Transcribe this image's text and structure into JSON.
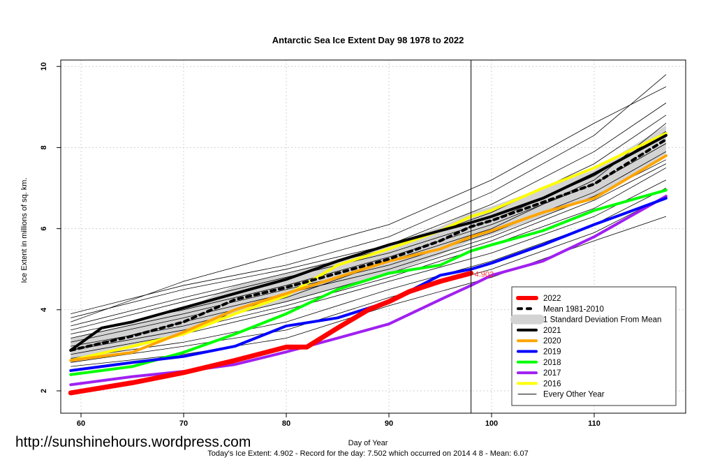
{
  "chart_data": {
    "type": "line",
    "title": "Antarctic Sea Ice Extent Day 98 1978 to 2022",
    "xlabel": "Day of Year",
    "ylabel": "Ice Extent in millions of sq. km.",
    "xlim": [
      59,
      117
    ],
    "ylim": [
      2,
      10
    ],
    "xticks": [
      60,
      70,
      80,
      90,
      100,
      110
    ],
    "yticks": [
      2,
      4,
      6,
      8,
      10
    ],
    "grid": true,
    "marker_day": 98,
    "annotation": "4.902",
    "legend_position": "bottom-right",
    "sd_band": {
      "label": "1 Standard Deviation From Mean",
      "color": "#d3d3d3",
      "x": [
        59,
        65,
        70,
        75,
        80,
        85,
        90,
        95,
        98,
        100,
        105,
        110,
        117
      ],
      "lower": [
        2.7,
        3.05,
        3.4,
        3.9,
        4.2,
        4.55,
        4.9,
        5.35,
        5.7,
        5.85,
        6.3,
        6.75,
        7.85
      ],
      "upper": [
        3.3,
        3.65,
        4.0,
        4.6,
        4.9,
        5.25,
        5.6,
        6.05,
        6.4,
        6.55,
        7.0,
        7.45,
        8.55
      ]
    },
    "series": [
      {
        "name": "Every Other Year",
        "color": "#000000",
        "width": 1,
        "other": true,
        "x": [
          59,
          70,
          80,
          90,
          100,
          110,
          117
        ],
        "lines": [
          [
            3.9,
            4.6,
            5.1,
            5.8,
            6.9,
            8.3,
            9.8
          ],
          [
            3.8,
            4.5,
            5.0,
            5.6,
            6.6,
            7.9,
            9.1
          ],
          [
            3.6,
            4.3,
            4.9,
            5.5,
            6.4,
            7.6,
            8.8
          ],
          [
            3.5,
            4.2,
            4.8,
            5.4,
            6.2,
            7.3,
            8.4
          ],
          [
            3.4,
            4.0,
            4.6,
            5.3,
            6.1,
            7.1,
            8.1
          ],
          [
            3.3,
            3.9,
            4.5,
            5.1,
            5.9,
            6.9,
            7.9
          ],
          [
            3.2,
            3.8,
            4.4,
            5.0,
            5.8,
            6.8,
            7.7
          ],
          [
            3.1,
            3.6,
            4.2,
            4.9,
            5.7,
            6.7,
            7.6
          ],
          [
            3.0,
            3.5,
            4.1,
            4.8,
            5.6,
            6.5,
            7.5
          ],
          [
            2.9,
            3.4,
            4.0,
            4.7,
            5.4,
            6.3,
            7.2
          ],
          [
            2.8,
            3.2,
            3.7,
            4.5,
            5.2,
            6.1,
            7.0
          ],
          [
            2.7,
            3.1,
            3.5,
            4.3,
            5.0,
            5.9,
            6.8
          ],
          [
            2.6,
            2.9,
            3.3,
            4.1,
            4.8,
            5.7,
            6.3
          ],
          [
            3.7,
            4.7,
            5.4,
            6.1,
            7.2,
            8.6,
            9.5
          ],
          [
            3.0,
            3.7,
            4.3,
            5.2,
            6.0,
            7.2,
            8.6
          ]
        ]
      },
      {
        "name": "2016",
        "color": "#ffff00",
        "width": 4,
        "x": [
          59,
          65,
          70,
          75,
          80,
          85,
          90,
          95,
          98,
          100,
          105,
          110,
          117
        ],
        "values": [
          2.75,
          3.1,
          3.4,
          3.9,
          4.35,
          5.1,
          5.5,
          5.95,
          6.3,
          6.45,
          7.0,
          7.5,
          8.35
        ]
      },
      {
        "name": "2017",
        "color": "#a020f0",
        "width": 4,
        "x": [
          59,
          65,
          70,
          75,
          80,
          85,
          90,
          95,
          98,
          100,
          105,
          110,
          117
        ],
        "values": [
          2.15,
          2.35,
          2.48,
          2.65,
          2.96,
          3.3,
          3.65,
          4.25,
          4.6,
          4.85,
          5.2,
          5.8,
          6.8
        ]
      },
      {
        "name": "2018",
        "color": "#00ff00",
        "width": 4,
        "x": [
          59,
          65,
          70,
          75,
          80,
          85,
          90,
          95,
          98,
          100,
          105,
          110,
          117
        ],
        "values": [
          2.4,
          2.6,
          2.95,
          3.4,
          3.9,
          4.5,
          4.9,
          5.1,
          5.45,
          5.6,
          5.95,
          6.45,
          6.95
        ]
      },
      {
        "name": "2019",
        "color": "#0000ff",
        "width": 4,
        "x": [
          59,
          65,
          70,
          75,
          80,
          85,
          90,
          95,
          98,
          100,
          105,
          110,
          117
        ],
        "values": [
          2.5,
          2.7,
          2.85,
          3.1,
          3.6,
          3.8,
          4.2,
          4.85,
          5.0,
          5.15,
          5.6,
          6.1,
          6.75
        ]
      },
      {
        "name": "2020",
        "color": "#ffa500",
        "width": 4,
        "x": [
          59,
          65,
          70,
          75,
          80,
          85,
          90,
          95,
          98,
          100,
          105,
          110,
          117
        ],
        "values": [
          2.75,
          2.95,
          3.45,
          4.0,
          4.4,
          4.8,
          5.2,
          5.5,
          5.8,
          5.95,
          6.4,
          6.75,
          7.8
        ]
      },
      {
        "name": "2021",
        "color": "#000000",
        "width": 4,
        "x": [
          59,
          62,
          65,
          70,
          75,
          80,
          85,
          90,
          95,
          98,
          100,
          105,
          110,
          117
        ],
        "values": [
          3.0,
          3.55,
          3.7,
          4.05,
          4.4,
          4.75,
          5.2,
          5.6,
          5.95,
          6.15,
          6.3,
          6.75,
          7.35,
          8.3
        ]
      },
      {
        "name": "Mean 1981-2010",
        "color": "#000000",
        "width": 4,
        "dash": true,
        "x": [
          59,
          65,
          70,
          75,
          80,
          85,
          90,
          95,
          98,
          100,
          105,
          110,
          117
        ],
        "values": [
          3.0,
          3.35,
          3.7,
          4.25,
          4.55,
          4.9,
          5.25,
          5.7,
          6.05,
          6.2,
          6.65,
          7.1,
          8.2
        ]
      },
      {
        "name": "2022",
        "color": "#ff0000",
        "width": 7,
        "x": [
          59,
          65,
          70,
          75,
          80,
          82,
          85,
          88,
          90,
          92,
          95,
          98
        ],
        "values": [
          1.95,
          2.2,
          2.45,
          2.75,
          3.08,
          3.08,
          3.55,
          4.0,
          4.2,
          4.45,
          4.7,
          4.902
        ]
      }
    ],
    "legend": [
      "2022",
      "Mean 1981-2010",
      "1 Standard Deviation From Mean",
      "2021",
      "2020",
      "2019",
      "2018",
      "2017",
      "2016",
      "Every Other Year"
    ]
  },
  "footer": {
    "url": "http://sunshinehours.wordpress.com",
    "summary": "Today's Ice Extent: 4.902  - Record for the day: 7.502 which occurred on 2014 4 8  - Mean: 6.07"
  }
}
